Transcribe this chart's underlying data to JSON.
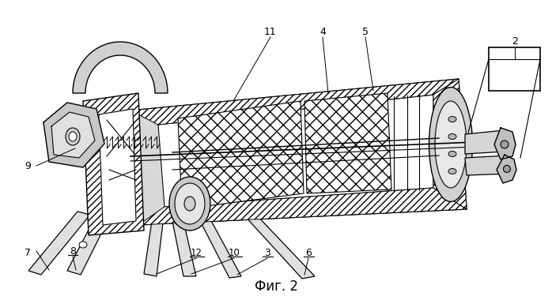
{
  "title": "Фиг. 2",
  "title_fontsize": 12,
  "background_color": "#ffffff",
  "line_color": "#000000",
  "fig_width": 6.98,
  "fig_height": 3.75,
  "dpi": 100
}
